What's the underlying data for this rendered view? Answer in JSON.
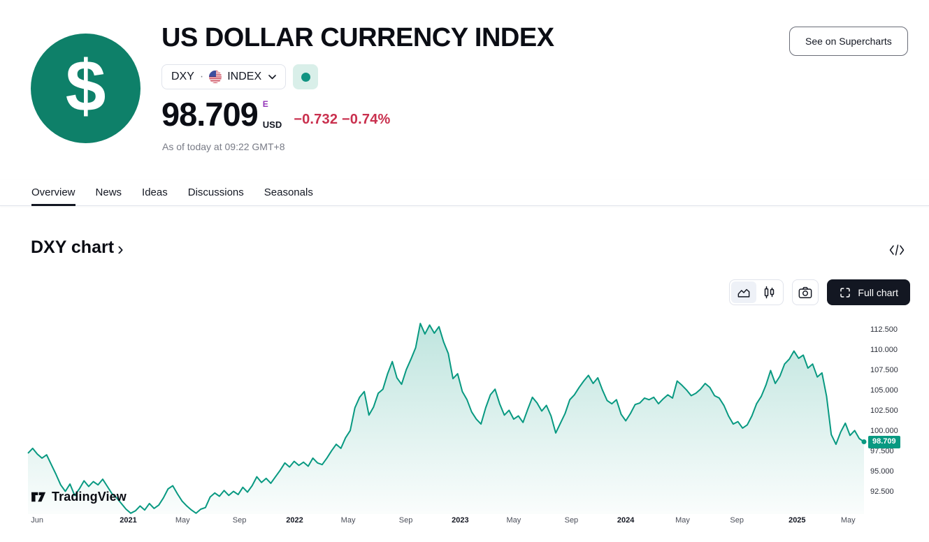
{
  "header": {
    "logo_text": "$",
    "title": "US DOLLAR CURRENCY INDEX",
    "symbol": "DXY",
    "separator": "·",
    "market": "INDEX",
    "market_status": "open",
    "price": "98.709",
    "data_mode_flag": "E",
    "currency": "USD",
    "change_abs": "−0.732",
    "change_pct": "−0.74%",
    "as_of": "As of today at 09:22 GMT+8",
    "supercharts_button": "See on Supercharts"
  },
  "tabs": [
    {
      "label": "Overview",
      "active": true
    },
    {
      "label": "News",
      "active": false
    },
    {
      "label": "Ideas",
      "active": false
    },
    {
      "label": "Discussions",
      "active": false
    },
    {
      "label": "Seasonals",
      "active": false
    }
  ],
  "chart_section": {
    "heading": "DXY chart",
    "heading_chevron": "›"
  },
  "chart_toolbar": {
    "full_chart_label": "Full chart"
  },
  "watermark_text": "TradingView",
  "colors": {
    "logo_teal": "#0e8069",
    "line_teal": "#089981",
    "status_dot_green": "#119482",
    "status_chip_bg": "#d9efe9",
    "down_red": "#c9304e",
    "data_flag_purple": "#9334b8",
    "muted_gray": "#787b86",
    "border_gray": "#e0e3eb"
  },
  "chart_data": {
    "type": "area",
    "title": "DXY chart",
    "symbol": "DXY",
    "unit": "USD",
    "last_value": 98.709,
    "last_label": "98.709",
    "value_range": [
      89.8,
      114.6
    ],
    "grid": false,
    "y_axis_side": "right",
    "legend": false,
    "line_color": "#089981",
    "fill_top": "rgba(8,153,129,0.26)",
    "fill_bottom": "rgba(8,153,129,0.02)",
    "y_ticks": [
      {
        "value": 112.5,
        "label": "112.500"
      },
      {
        "value": 110.0,
        "label": "110.000"
      },
      {
        "value": 107.5,
        "label": "107.500"
      },
      {
        "value": 105.0,
        "label": "105.000"
      },
      {
        "value": 102.5,
        "label": "102.500"
      },
      {
        "value": 100.0,
        "label": "100.000"
      },
      {
        "value": 97.5,
        "label": "97.500"
      },
      {
        "value": 95.0,
        "label": "95.000"
      },
      {
        "value": 92.5,
        "label": "92.500"
      }
    ],
    "x_ticks": [
      {
        "label": "Jun",
        "pos": 0.011,
        "strong": false
      },
      {
        "label": "2021",
        "pos": 0.12,
        "strong": true
      },
      {
        "label": "May",
        "pos": 0.185,
        "strong": false
      },
      {
        "label": "Sep",
        "pos": 0.253,
        "strong": false
      },
      {
        "label": "2022",
        "pos": 0.319,
        "strong": true
      },
      {
        "label": "May",
        "pos": 0.383,
        "strong": false
      },
      {
        "label": "Sep",
        "pos": 0.452,
        "strong": false
      },
      {
        "label": "2023",
        "pos": 0.517,
        "strong": true
      },
      {
        "label": "May",
        "pos": 0.581,
        "strong": false
      },
      {
        "label": "Sep",
        "pos": 0.65,
        "strong": false
      },
      {
        "label": "2024",
        "pos": 0.715,
        "strong": true
      },
      {
        "label": "May",
        "pos": 0.783,
        "strong": false
      },
      {
        "label": "Sep",
        "pos": 0.848,
        "strong": false
      },
      {
        "label": "2025",
        "pos": 0.92,
        "strong": true
      },
      {
        "label": "May",
        "pos": 0.981,
        "strong": false
      }
    ],
    "values": [
      97.3,
      97.9,
      97.2,
      96.7,
      97.1,
      95.9,
      94.7,
      93.4,
      92.6,
      93.5,
      92.1,
      92.9,
      93.9,
      93.2,
      93.8,
      93.4,
      94.1,
      93.2,
      92.3,
      91.8,
      91.1,
      90.4,
      89.9,
      90.2,
      90.8,
      90.3,
      91.1,
      90.5,
      90.9,
      91.8,
      92.9,
      93.3,
      92.3,
      91.4,
      90.8,
      90.3,
      89.9,
      90.4,
      90.6,
      91.9,
      92.4,
      92.0,
      92.7,
      92.1,
      92.6,
      92.2,
      93.1,
      92.5,
      93.3,
      94.4,
      93.7,
      94.2,
      93.6,
      94.4,
      95.2,
      96.1,
      95.6,
      96.3,
      95.8,
      96.2,
      95.7,
      96.7,
      96.1,
      95.9,
      96.7,
      97.6,
      98.4,
      97.9,
      99.2,
      100.1,
      102.9,
      104.2,
      104.9,
      102.0,
      103.0,
      104.7,
      105.2,
      107.1,
      108.6,
      106.6,
      105.8,
      107.6,
      108.9,
      110.3,
      113.3,
      112.0,
      113.1,
      112.1,
      112.9,
      111.0,
      109.6,
      106.5,
      107.1,
      104.9,
      103.9,
      102.4,
      101.5,
      100.9,
      102.9,
      104.5,
      105.2,
      103.4,
      102.0,
      102.6,
      101.5,
      101.9,
      101.1,
      102.7,
      104.2,
      103.5,
      102.5,
      103.2,
      101.9,
      99.8,
      101.0,
      102.2,
      103.9,
      104.5,
      105.4,
      106.2,
      106.9,
      105.9,
      106.6,
      105.1,
      103.8,
      103.4,
      103.9,
      102.1,
      101.3,
      102.2,
      103.3,
      103.5,
      104.1,
      103.9,
      104.2,
      103.4,
      104.0,
      104.5,
      104.1,
      106.2,
      105.7,
      105.1,
      104.4,
      104.7,
      105.2,
      105.9,
      105.4,
      104.4,
      104.1,
      103.2,
      101.9,
      100.9,
      101.2,
      100.4,
      100.8,
      101.9,
      103.4,
      104.3,
      105.7,
      107.5,
      105.9,
      106.8,
      108.3,
      108.9,
      109.9,
      109.0,
      109.4,
      107.8,
      108.3,
      106.7,
      107.2,
      104.3,
      99.6,
      98.4,
      99.9,
      101.0,
      99.5,
      100.1,
      99.1,
      98.709
    ]
  }
}
